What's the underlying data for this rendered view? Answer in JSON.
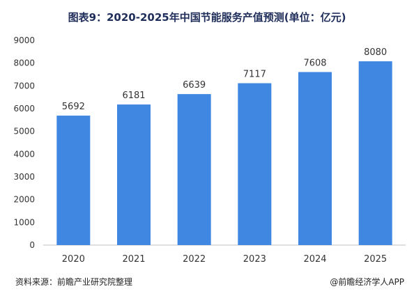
{
  "title": "图表9：2020-2025年中国节能服务产值预测(单位：亿元)",
  "source": "资料来源：前瞻产业研究院整理",
  "brand": "@前瞻经济学人APP",
  "colors": {
    "bar": "#3f87e0",
    "axis": "#bfbfbf",
    "text": "#333333"
  },
  "chart_data": {
    "type": "bar",
    "title": "图表9：2020-2025年中国节能服务产值预测(单位：亿元)",
    "categories": [
      "2020",
      "2021",
      "2022",
      "2023",
      "2024",
      "2025"
    ],
    "values": [
      5692,
      6181,
      6639,
      7117,
      7608,
      8080
    ],
    "data_labels": [
      "5692",
      "6181",
      "6639",
      "7117",
      "7608",
      "8080"
    ],
    "ylim": [
      0,
      9000
    ],
    "yticks": [
      "0",
      "1000",
      "2000",
      "3000",
      "4000",
      "5000",
      "6000",
      "7000",
      "8000",
      "9000"
    ],
    "grid": false,
    "legend": "none"
  }
}
